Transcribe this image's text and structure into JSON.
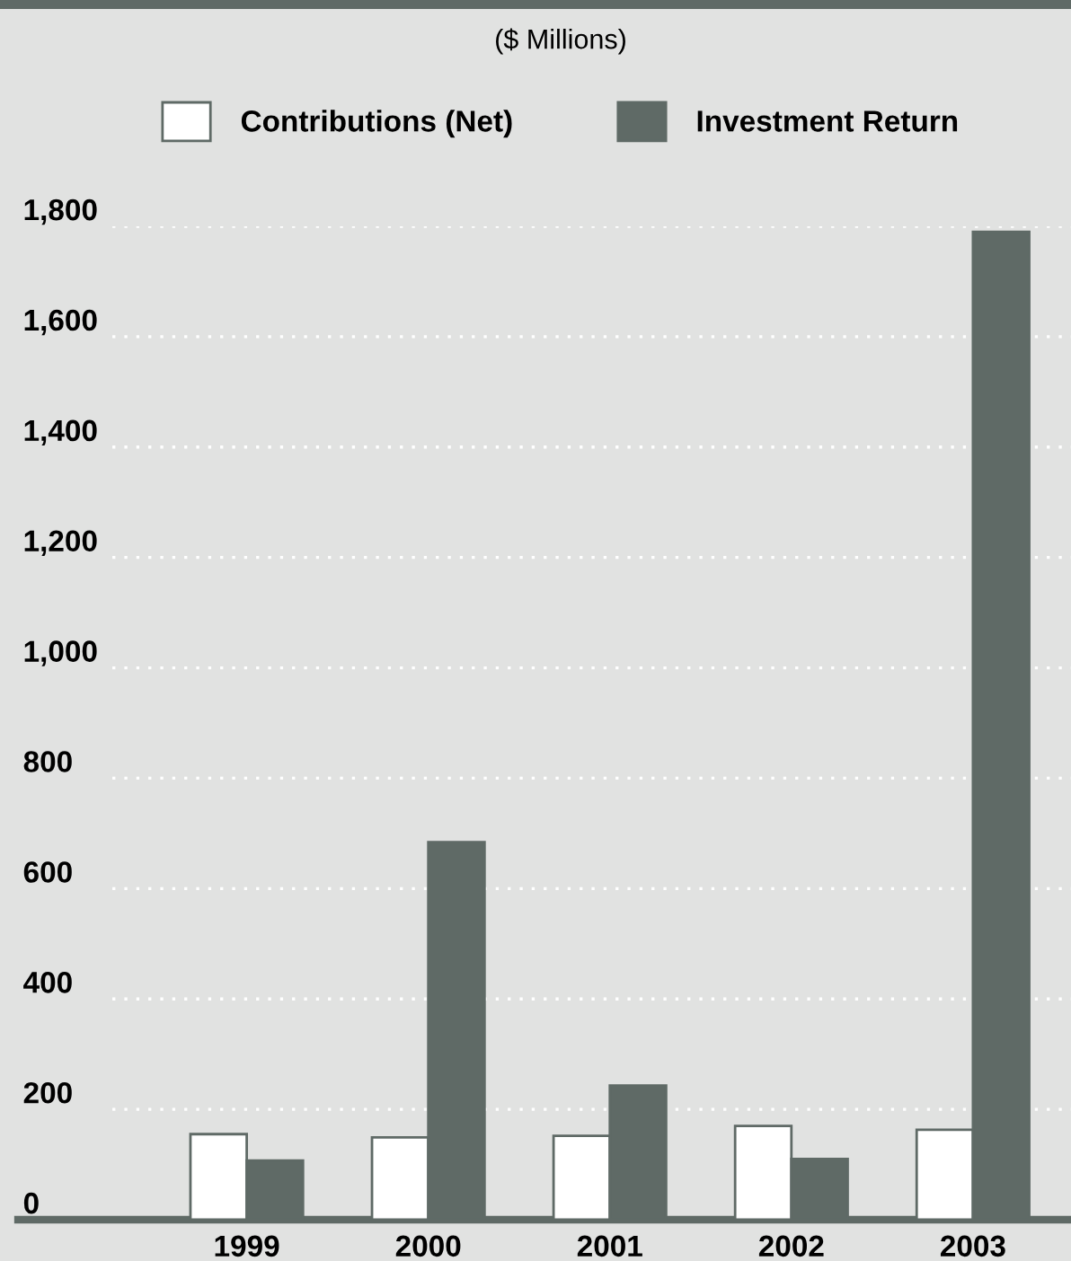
{
  "chart_data": {
    "type": "bar",
    "subtitle": "($ Millions)",
    "categories": [
      "1999",
      "2000",
      "2001",
      "2002",
      "2003"
    ],
    "series": [
      {
        "name": "Contributions (Net)",
        "color": "#ffffff",
        "values": [
          155,
          149,
          152,
          170,
          163
        ]
      },
      {
        "name": "Investment Return",
        "color": "#5f6a66",
        "values": [
          107,
          684,
          243,
          110,
          1790
        ]
      }
    ],
    "ylim": [
      0,
      1800
    ],
    "yticks": [
      0,
      {
        "value": 200,
        "label": "200"
      },
      {
        "value": 400,
        "label": "400"
      },
      {
        "value": 600,
        "label": "600"
      },
      {
        "value": 800,
        "label": "800"
      },
      {
        "value": 1000,
        "label": "1,000"
      },
      {
        "value": 1200,
        "label": "1,200"
      },
      {
        "value": 1400,
        "label": "1,400"
      },
      {
        "value": 1600,
        "label": "1,600"
      },
      {
        "value": 1800,
        "label": "1,800"
      }
    ],
    "grid": "y",
    "legend": "top"
  }
}
